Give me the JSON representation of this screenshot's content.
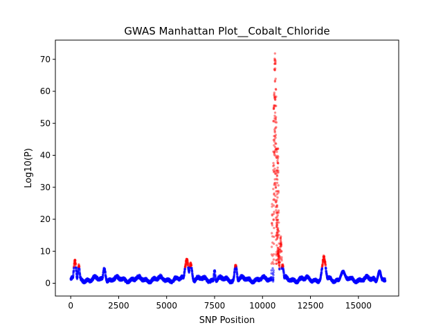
{
  "chart_data": {
    "type": "scatter",
    "title": "GWAS Manhattan Plot__Cobalt_Chloride",
    "xlabel": "SNP Position",
    "ylabel": "Log10(P)",
    "xlim": [
      -800,
      17100
    ],
    "ylim": [
      -4,
      76
    ],
    "xticks": [
      0,
      2500,
      5000,
      7500,
      10000,
      12500,
      15000
    ],
    "xtick_labels": [
      "0",
      "2500",
      "5000",
      "7500",
      "10000",
      "12500",
      "15000"
    ],
    "yticks": [
      0,
      10,
      20,
      30,
      40,
      50,
      60,
      70
    ],
    "ytick_labels": [
      "0",
      "10",
      "20",
      "30",
      "40",
      "50",
      "60",
      "70"
    ],
    "grid": false,
    "significance_threshold": 5,
    "colors": {
      "below_threshold": "#0000ff",
      "above_threshold": "#ff0000"
    },
    "x_range_snps": [
      0,
      16400
    ],
    "peaks": [
      {
        "x": 220,
        "max_y": 7.5
      },
      {
        "x": 420,
        "max_y": 6.0
      },
      {
        "x": 1750,
        "max_y": 5.0
      },
      {
        "x": 6050,
        "max_y": 7.8
      },
      {
        "x": 6250,
        "max_y": 6.5
      },
      {
        "x": 7500,
        "max_y": 4.5
      },
      {
        "x": 8600,
        "max_y": 6.2
      },
      {
        "x": 10500,
        "max_y": 25
      },
      {
        "x": 10650,
        "max_y": 72
      },
      {
        "x": 10800,
        "max_y": 45
      },
      {
        "x": 10950,
        "max_y": 15
      },
      {
        "x": 11050,
        "max_y": 6.0
      },
      {
        "x": 13200,
        "max_y": 8.8
      },
      {
        "x": 14200,
        "max_y": 4.0
      },
      {
        "x": 16100,
        "max_y": 4.0
      }
    ]
  }
}
